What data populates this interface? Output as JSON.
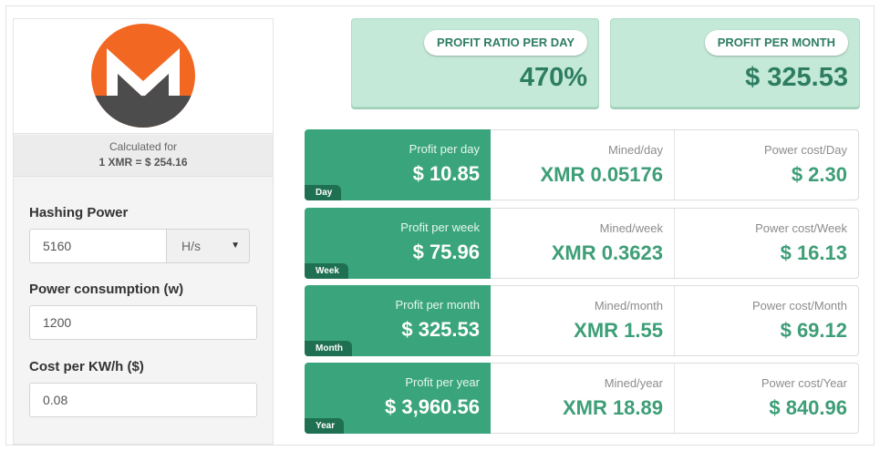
{
  "calculator": {
    "calculated_for_label": "Calculated for",
    "calculated_for_value": "1 XMR = $ 254.16",
    "logo_name": "monero-logo",
    "fields": {
      "hashing_power": {
        "label": "Hashing Power",
        "value": "5160",
        "unit": "H/s"
      },
      "power_consumption": {
        "label": "Power consumption (w)",
        "value": "1200"
      },
      "cost_per_kwh": {
        "label": "Cost per KW/h ($)",
        "value": "0.08"
      }
    }
  },
  "summary": {
    "ratio": {
      "label": "PROFIT RATIO PER DAY",
      "value": "470%"
    },
    "month": {
      "label": "PROFIT PER MONTH",
      "value": "$ 325.53"
    }
  },
  "rows": [
    {
      "tag": "Day",
      "profit_label": "Profit per day",
      "profit_value": "$ 10.85",
      "mined_label": "Mined/day",
      "mined_value": "XMR 0.05176",
      "power_label": "Power cost/Day",
      "power_value": "$ 2.30"
    },
    {
      "tag": "Week",
      "profit_label": "Profit per week",
      "profit_value": "$ 75.96",
      "mined_label": "Mined/week",
      "mined_value": "XMR 0.3623",
      "power_label": "Power cost/Week",
      "power_value": "$ 16.13"
    },
    {
      "tag": "Month",
      "profit_label": "Profit per month",
      "profit_value": "$ 325.53",
      "mined_label": "Mined/month",
      "mined_value": "XMR 1.55",
      "power_label": "Power cost/Month",
      "power_value": "$ 69.12"
    },
    {
      "tag": "Year",
      "profit_label": "Profit per year",
      "profit_value": "$ 3,960.56",
      "mined_label": "Mined/year",
      "mined_value": "XMR 18.89",
      "power_label": "Power cost/Year",
      "power_value": "$ 840.96"
    }
  ],
  "colors": {
    "accent_green": "#3aa57c",
    "tag_dark_green": "#1f7052",
    "summary_bg": "#c4e9d8",
    "text_green": "#2d7d62",
    "monero_orange": "#f26822",
    "monero_gray": "#4c4c4c"
  }
}
